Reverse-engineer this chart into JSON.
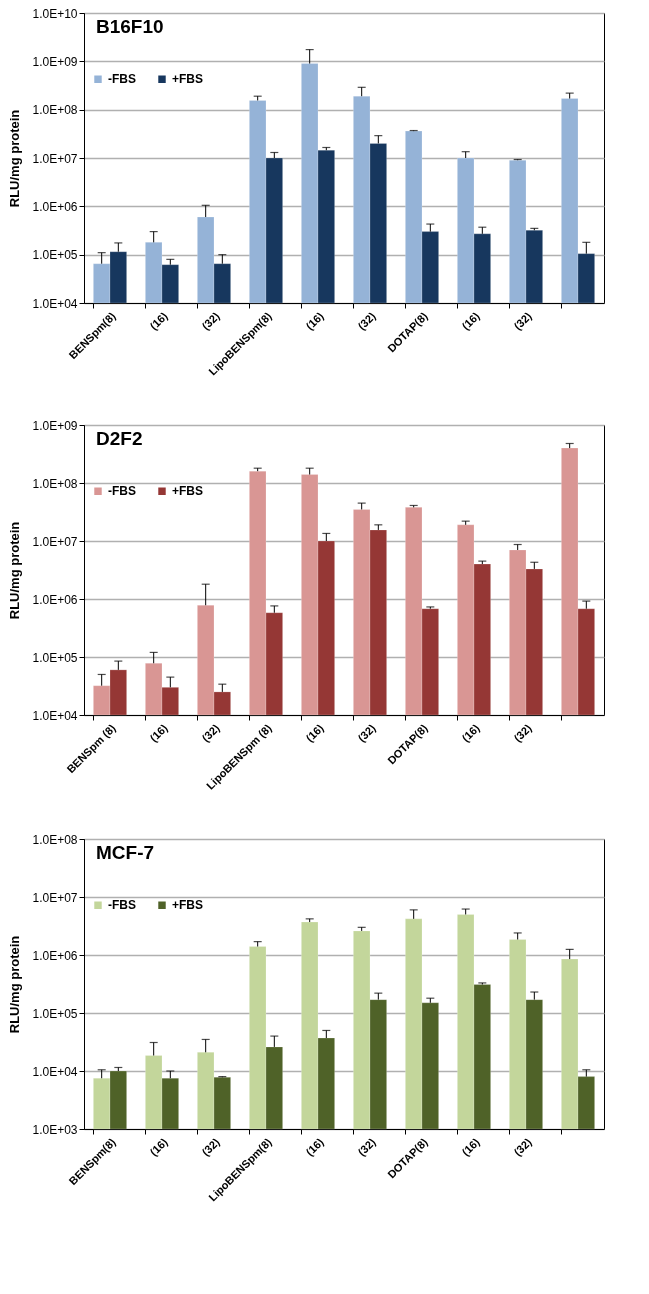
{
  "chart_data": [
    {
      "type": "bar",
      "title": "B16F10",
      "ylabel": "RLU/mg protein",
      "categories": [
        "BENSpm(8)",
        "(16)",
        "(32)",
        "LipoBENSpm(8)",
        "(16)",
        "(32)",
        "DOTAP(8)",
        "(16)",
        "(32)",
        null
      ],
      "log": true,
      "grid": "y",
      "legend": "top left",
      "ylim": [
        10000,
        10000000000
      ],
      "yticks": [
        {
          "value": 10000,
          "label": "1.0E+04"
        },
        {
          "value": 100000,
          "label": "1.0E+05"
        },
        {
          "value": 1000000,
          "label": "1.0E+06"
        },
        {
          "value": 10000000,
          "label": "1.0E+07"
        },
        {
          "value": 100000000,
          "label": "1.0E+08"
        },
        {
          "value": 1000000000,
          "label": "1.0E+09"
        },
        {
          "value": 10000000000,
          "label": "1.0E+10"
        }
      ],
      "series": [
        {
          "name": "-FBS",
          "color": "#95b3d7",
          "values": [
            65000,
            180000,
            600000,
            155000000,
            900000000,
            190000000,
            36000000,
            10000000,
            9000000,
            170000000
          ],
          "errors": [
            [
              65000,
              110000
            ],
            [
              180000,
              300000
            ],
            [
              600000,
              1050000
            ],
            [
              155000000,
              190000000
            ],
            [
              900000000,
              1750000000
            ],
            [
              190000000,
              290000000
            ],
            [
              36000000,
              37000000
            ],
            [
              10000000,
              13500000
            ],
            [
              9000000,
              9300000
            ],
            [
              170000000,
              220000000
            ]
          ]
        },
        {
          "name": "+FBS",
          "color": "#17375e",
          "values": [
            115000,
            62000,
            65000,
            10000000,
            14500000,
            20000000,
            300000,
            270000,
            320000,
            105000
          ],
          "errors": [
            [
              115000,
              175000
            ],
            [
              62000,
              80000
            ],
            [
              65000,
              100000
            ],
            [
              10000000,
              13000000
            ],
            [
              14500000,
              16500000
            ],
            [
              20000000,
              29000000
            ],
            [
              300000,
              430000
            ],
            [
              270000,
              370000
            ],
            [
              320000,
              350000
            ],
            [
              105000,
              180000
            ]
          ]
        }
      ]
    },
    {
      "type": "bar",
      "title": "D2F2",
      "ylabel": "RLU/mg protein",
      "categories": [
        "BENSpm (8)",
        "(16)",
        "(32)",
        "LipoBENSpm (8)",
        "(16)",
        "(32)",
        "DOTAP(8)",
        "(16)",
        "(32)",
        null
      ],
      "log": true,
      "grid": "y",
      "legend": "top left",
      "ylim": [
        10000,
        1000000000
      ],
      "yticks": [
        {
          "value": 10000,
          "label": "1.0E+04"
        },
        {
          "value": 100000,
          "label": "1.0E+05"
        },
        {
          "value": 1000000,
          "label": "1.0E+06"
        },
        {
          "value": 10000000,
          "label": "1.0E+07"
        },
        {
          "value": 100000000,
          "label": "1.0E+08"
        },
        {
          "value": 1000000000,
          "label": "1.0E+09"
        }
      ],
      "series": [
        {
          "name": "-FBS",
          "color": "#d99694",
          "values": [
            32000,
            78000,
            780000,
            160000000,
            140000000,
            35000000,
            38000000,
            19000000,
            7000000,
            400000000
          ],
          "errors": [
            [
              32000,
              50000
            ],
            [
              78000,
              120000
            ],
            [
              780000,
              1800000
            ],
            [
              160000000,
              180000000
            ],
            [
              140000000,
              180000000
            ],
            [
              35000000,
              45000000
            ],
            [
              38000000,
              41000000
            ],
            [
              19000000,
              22000000
            ],
            [
              7000000,
              8700000
            ],
            [
              400000000,
              480000000
            ]
          ]
        },
        {
          "name": "+FBS",
          "color": "#953735",
          "values": [
            60000,
            30000,
            25000,
            580000,
            10000000,
            15500000,
            680000,
            4000000,
            3300000,
            680000
          ],
          "errors": [
            [
              60000,
              85000
            ],
            [
              30000,
              45000
            ],
            [
              25000,
              34000
            ],
            [
              580000,
              760000
            ],
            [
              10000000,
              13500000
            ],
            [
              15500000,
              19000000
            ],
            [
              680000,
              730000
            ],
            [
              4000000,
              4500000
            ],
            [
              3300000,
              4300000
            ],
            [
              680000,
              920000
            ]
          ]
        }
      ]
    },
    {
      "type": "bar",
      "title": "MCF-7",
      "ylabel": "RLU/mg protein",
      "categories": [
        "BENSpm(8)",
        "(16)",
        "(32)",
        "LipoBENSpm(8)",
        "(16)",
        "(32)",
        "DOTAP(8)",
        "(16)",
        "(32)",
        null
      ],
      "log": true,
      "grid": "y",
      "legend": "top left",
      "ylim": [
        1000,
        100000000
      ],
      "yticks": [
        {
          "value": 1000,
          "label": "1.0E+03"
        },
        {
          "value": 10000,
          "label": "1.0E+04"
        },
        {
          "value": 100000,
          "label": "1.0E+05"
        },
        {
          "value": 1000000,
          "label": "1.0E+06"
        },
        {
          "value": 10000000,
          "label": "1.0E+07"
        },
        {
          "value": 100000000,
          "label": "1.0E+08"
        }
      ],
      "series": [
        {
          "name": "-FBS",
          "color": "#c3d69b",
          "values": [
            7500,
            18500,
            21000,
            1400000,
            3700000,
            2600000,
            4200000,
            5000000,
            1850000,
            850000
          ],
          "errors": [
            [
              7500,
              10500
            ],
            [
              18500,
              31000
            ],
            [
              21000,
              35000
            ],
            [
              1400000,
              1700000
            ],
            [
              3700000,
              4200000
            ],
            [
              2600000,
              3000000
            ],
            [
              4200000,
              6000000
            ],
            [
              5000000,
              6200000
            ],
            [
              1850000,
              2400000
            ],
            [
              850000,
              1250000
            ]
          ]
        },
        {
          "name": "+FBS",
          "color": "#4f6228",
          "values": [
            10000,
            7500,
            7800,
            26000,
            37000,
            170000,
            150000,
            310000,
            170000,
            8000
          ],
          "errors": [
            [
              10000,
              11500
            ],
            [
              7500,
              10000
            ],
            [
              7800,
              8000
            ],
            [
              26000,
              40000
            ],
            [
              37000,
              50000
            ],
            [
              170000,
              220000
            ],
            [
              150000,
              180000
            ],
            [
              310000,
              330000
            ],
            [
              170000,
              230000
            ],
            [
              8000,
              10500
            ]
          ]
        }
      ]
    }
  ]
}
